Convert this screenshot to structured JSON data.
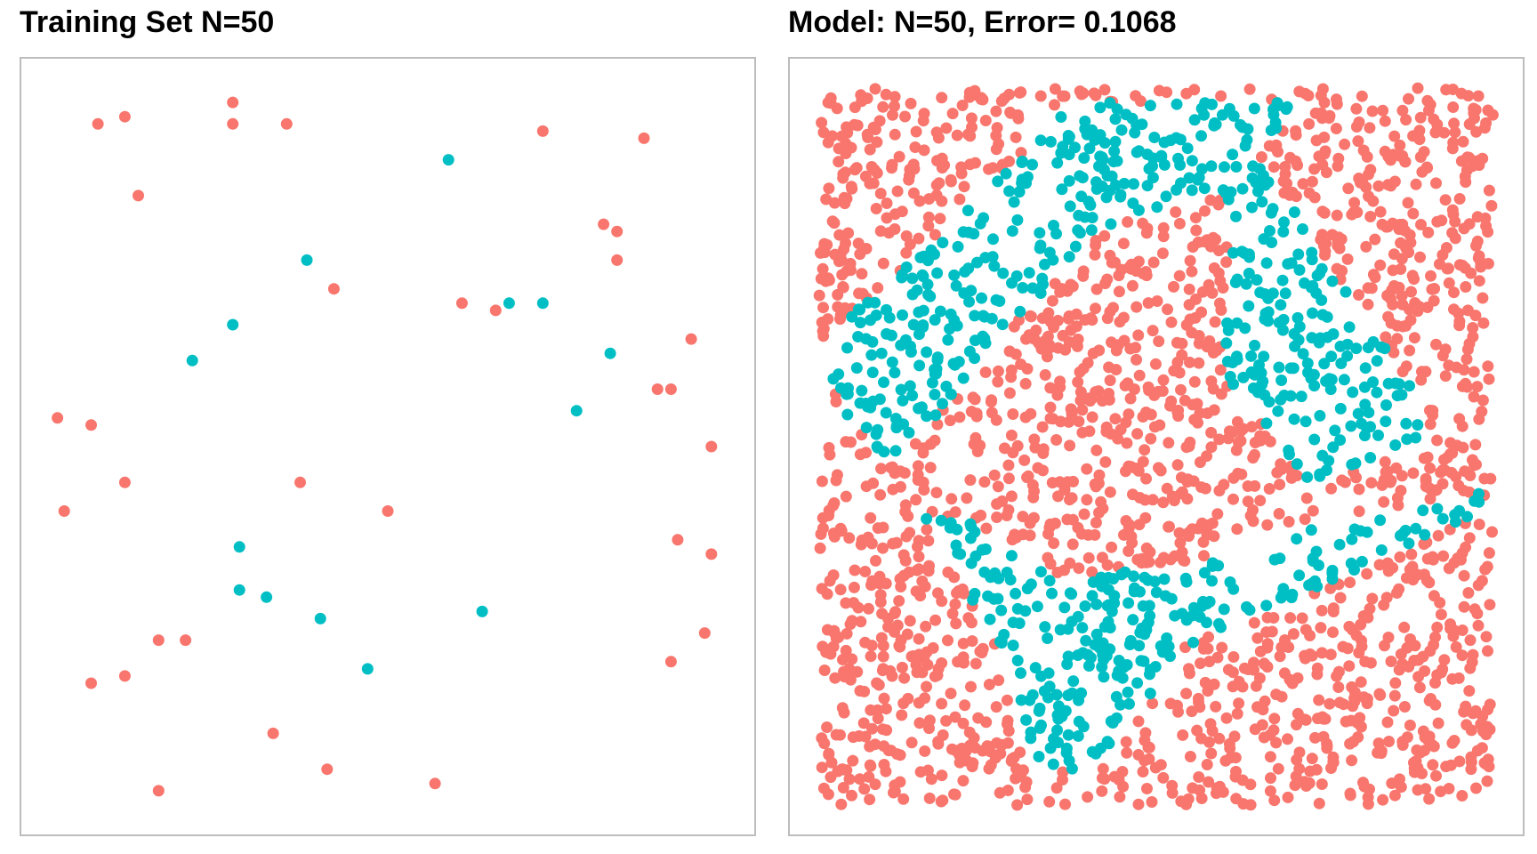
{
  "colors": {
    "class_a": "#f8766d",
    "class_b": "#00bfc4",
    "frame": "#bdbdbd",
    "background": "#ffffff"
  },
  "chart_data": [
    {
      "type": "scatter",
      "title": "Training Set N=50",
      "xlabel": "",
      "ylabel": "",
      "xlim": [
        0,
        1
      ],
      "ylim": [
        0,
        1
      ],
      "grid": false,
      "legend": "none",
      "series": [
        {
          "color": "#f8766d",
          "points": [
            [
              0.07,
              0.95
            ],
            [
              0.11,
              0.96
            ],
            [
              0.27,
              0.98
            ],
            [
              0.27,
              0.95
            ],
            [
              0.35,
              0.95
            ],
            [
              0.73,
              0.94
            ],
            [
              0.88,
              0.93
            ],
            [
              0.13,
              0.85
            ],
            [
              0.82,
              0.81
            ],
            [
              0.84,
              0.8
            ],
            [
              0.84,
              0.76
            ],
            [
              0.42,
              0.72
            ],
            [
              0.61,
              0.7
            ],
            [
              0.66,
              0.69
            ],
            [
              0.95,
              0.65
            ],
            [
              0.9,
              0.58
            ],
            [
              0.92,
              0.58
            ],
            [
              0.01,
              0.54
            ],
            [
              0.06,
              0.53
            ],
            [
              0.98,
              0.5
            ],
            [
              0.11,
              0.45
            ],
            [
              0.37,
              0.45
            ],
            [
              0.02,
              0.41
            ],
            [
              0.5,
              0.41
            ],
            [
              0.93,
              0.37
            ],
            [
              0.98,
              0.35
            ],
            [
              0.97,
              0.24
            ],
            [
              0.16,
              0.23
            ],
            [
              0.2,
              0.23
            ],
            [
              0.92,
              0.2
            ],
            [
              0.06,
              0.17
            ],
            [
              0.11,
              0.18
            ],
            [
              0.33,
              0.1
            ],
            [
              0.41,
              0.05
            ],
            [
              0.16,
              0.02
            ],
            [
              0.57,
              0.03
            ]
          ]
        },
        {
          "color": "#00bfc4",
          "points": [
            [
              0.59,
              0.9
            ],
            [
              0.38,
              0.76
            ],
            [
              0.68,
              0.7
            ],
            [
              0.73,
              0.7
            ],
            [
              0.27,
              0.67
            ],
            [
              0.21,
              0.62
            ],
            [
              0.83,
              0.63
            ],
            [
              0.78,
              0.55
            ],
            [
              0.28,
              0.36
            ],
            [
              0.28,
              0.3
            ],
            [
              0.32,
              0.29
            ],
            [
              0.4,
              0.26
            ],
            [
              0.64,
              0.27
            ],
            [
              0.47,
              0.19
            ]
          ]
        }
      ]
    },
    {
      "type": "scatter",
      "title": "Model: N=50, Error= 0.1068",
      "xlabel": "",
      "ylabel": "",
      "xlim": [
        0,
        1
      ],
      "ylim": [
        0,
        1
      ],
      "grid": false,
      "legend": "none",
      "series": [
        {
          "color": "#f8766d",
          "points": []
        },
        {
          "color": "#00bfc4",
          "points": [],
          "region_polygons": [
            [
              [
                0.0,
                0.63
              ],
              [
                0.03,
                0.67
              ],
              [
                0.14,
                0.76
              ],
              [
                0.26,
                0.87
              ],
              [
                0.38,
                0.98
              ],
              [
                0.72,
                0.98
              ],
              [
                0.65,
                0.91
              ],
              [
                0.9,
                0.55
              ],
              [
                0.88,
                0.5
              ],
              [
                0.73,
                0.45
              ],
              [
                0.6,
                0.6
              ],
              [
                0.61,
                0.84
              ],
              [
                0.57,
                0.86
              ],
              [
                0.4,
                0.79
              ],
              [
                0.18,
                0.55
              ],
              [
                0.14,
                0.51
              ],
              [
                0.1,
                0.47
              ],
              [
                0.03,
                0.56
              ]
            ],
            [
              [
                0.15,
                0.41
              ],
              [
                0.24,
                0.39
              ],
              [
                0.36,
                0.32
              ],
              [
                0.56,
                0.34
              ],
              [
                0.69,
                0.38
              ],
              [
                0.99,
                0.44
              ],
              [
                0.97,
                0.4
              ],
              [
                0.72,
                0.29
              ],
              [
                0.54,
                0.22
              ],
              [
                0.46,
                0.1
              ],
              [
                0.4,
                0.04
              ],
              [
                0.3,
                0.07
              ],
              [
                0.27,
                0.21
              ]
            ]
          ]
        }
      ]
    }
  ]
}
